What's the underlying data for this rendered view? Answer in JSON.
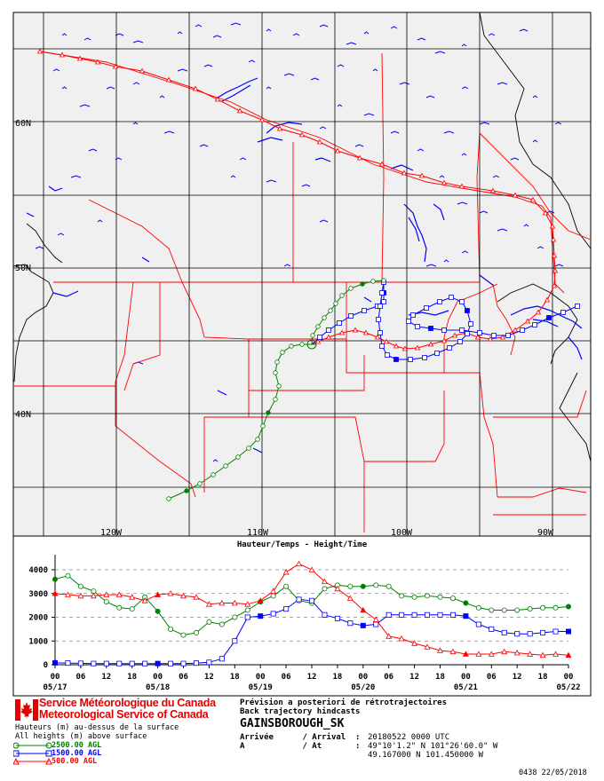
{
  "map": {
    "grid_labels": {
      "lat": [
        "60N",
        "50N",
        "40N"
      ],
      "lon": [
        "120W",
        "110W",
        "100W",
        "90W"
      ]
    },
    "trajectory_colors": {
      "h2500": "#008000",
      "h1500": "#0000ff",
      "h500": "#ff0000"
    },
    "boundary_color": "#ff0000",
    "water_color": "#0000ff"
  },
  "height_chart": {
    "title": "Hauteur/Temps - Height/Time",
    "y_ticks": [
      "0",
      "1000",
      "2000",
      "3000",
      "4000"
    ],
    "x_hour_labels": [
      "00",
      "06",
      "12",
      "18",
      "00",
      "06",
      "12",
      "18",
      "00",
      "06",
      "12",
      "18",
      "00",
      "06",
      "12",
      "18",
      "00",
      "06",
      "12",
      "18",
      "00"
    ],
    "x_date_labels": [
      "05/17",
      "05/18",
      "05/19",
      "05/20",
      "05/21",
      "05/22"
    ]
  },
  "chart_data": {
    "type": "line",
    "title": "Hauteur/Temps - Height/Time",
    "xlabel": "",
    "ylabel": "",
    "x_hours_back": [
      120,
      117,
      114,
      111,
      108,
      105,
      102,
      99,
      96,
      93,
      90,
      87,
      84,
      81,
      78,
      75,
      72,
      69,
      66,
      63,
      60,
      57,
      54,
      51,
      48,
      45,
      42,
      39,
      36,
      33,
      30,
      27,
      24,
      21,
      18,
      15,
      12,
      9,
      6,
      3,
      0
    ],
    "ylim": [
      0,
      4000
    ],
    "series": [
      {
        "name": "2500.00 AGL",
        "values": [
          3600,
          3750,
          3300,
          3100,
          2650,
          2400,
          2350,
          2850,
          2250,
          1500,
          1250,
          1350,
          1800,
          1700,
          2000,
          2300,
          2650,
          2900,
          3300,
          2700,
          2600,
          3200,
          3350,
          3300,
          3300,
          3350,
          3300,
          2900,
          2850,
          2900,
          2850,
          2800,
          2600,
          2400,
          2300,
          2300,
          2300,
          2350,
          2400,
          2400,
          2450
        ]
      },
      {
        "name": "1500.00 AGL",
        "values": [
          80,
          70,
          60,
          50,
          50,
          50,
          50,
          50,
          50,
          50,
          50,
          70,
          100,
          250,
          1000,
          2000,
          2050,
          2150,
          2350,
          2750,
          2700,
          2100,
          1950,
          1750,
          1650,
          1700,
          2100,
          2100,
          2100,
          2100,
          2100,
          2100,
          2050,
          1700,
          1500,
          1350,
          1300,
          1300,
          1350,
          1400,
          1400
        ]
      },
      {
        "name": "500.00 AGL",
        "values": [
          3000,
          2950,
          2900,
          2900,
          2950,
          2950,
          2850,
          2700,
          2950,
          3000,
          2900,
          2850,
          2550,
          2600,
          2600,
          2550,
          2700,
          3100,
          3900,
          4250,
          4000,
          3500,
          3200,
          2800,
          2300,
          1900,
          1200,
          1100,
          900,
          750,
          600,
          550,
          450,
          450,
          450,
          550,
          500,
          450,
          400,
          450,
          400
        ]
      }
    ]
  },
  "legend": {
    "heading_fr": "Hauteurs (m) au-dessus de la surface",
    "heading_en": "All heights (m) above surface",
    "items": [
      {
        "label": "2500.00 AGL",
        "color": "#008000"
      },
      {
        "label": "1500.00 AGL",
        "color": "#0000ff"
      },
      {
        "label": "500.00 AGL",
        "color": "#ff0000"
      }
    ]
  },
  "org": {
    "line_fr": "Service Météorologique du Canada",
    "line_en": "Meteorological Service of Canada"
  },
  "info": {
    "title_fr": "Prévision a posteriori de rétrotrajectoires",
    "title_en": "Back trajectory hindcasts",
    "station": "GAINSBOROUGH_SK",
    "arrival_label": "Arrivée      / Arrival  :",
    "arrival_value": "20180522 0000 UTC",
    "at_label": "A            / At       :",
    "at_value_dms": "49°10'1.2\" N 101°26'60.0\" W",
    "at_value_dec": "49.167000 N 101.450000 W"
  },
  "footer": {
    "stamp": "0438 22/05/2018"
  }
}
